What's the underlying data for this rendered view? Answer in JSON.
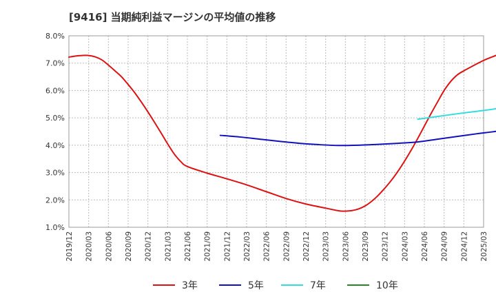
{
  "chart_data": {
    "type": "line",
    "title": "[9416]  当期純利益マージンの平均値の推移",
    "xlabel": "",
    "ylabel": "",
    "ylim": [
      1.0,
      8.0
    ],
    "y_ticks": [
      "1.0%",
      "2.0%",
      "3.0%",
      "4.0%",
      "5.0%",
      "6.0%",
      "7.0%",
      "8.0%"
    ],
    "x_ticks": [
      "2019/12",
      "2020/03",
      "2020/06",
      "2020/09",
      "2020/12",
      "2021/03",
      "2021/06",
      "2021/09",
      "2021/12",
      "2022/03",
      "2022/06",
      "2022/09",
      "2022/12",
      "2023/03",
      "2023/06",
      "2023/09",
      "2023/12",
      "2024/03",
      "2024/06",
      "2024/09",
      "2024/12",
      "2025/03"
    ],
    "grid": true,
    "legend_position": "bottom",
    "series": [
      {
        "name": "3年",
        "color": "#dd1111",
        "points": [
          [
            "2019/12",
            7.22
          ],
          [
            "2020/01",
            7.26
          ],
          [
            "2020/02",
            7.28
          ],
          [
            "2020/03",
            7.28
          ],
          [
            "2020/04",
            7.23
          ],
          [
            "2020/05",
            7.12
          ],
          [
            "2020/06",
            6.93
          ],
          [
            "2020/07",
            6.72
          ],
          [
            "2020/08",
            6.5
          ],
          [
            "2020/09",
            6.22
          ],
          [
            "2020/10",
            5.92
          ],
          [
            "2020/11",
            5.58
          ],
          [
            "2020/12",
            5.22
          ],
          [
            "2021/01",
            4.84
          ],
          [
            "2021/02",
            4.45
          ],
          [
            "2021/03",
            4.05
          ],
          [
            "2021/04",
            3.68
          ],
          [
            "2021/05",
            3.4
          ],
          [
            "2021/06",
            3.22
          ],
          [
            "2021/09",
            2.98
          ],
          [
            "2021/12",
            2.77
          ],
          [
            "2022/03",
            2.55
          ],
          [
            "2022/06",
            2.3
          ],
          [
            "2022/09",
            2.05
          ],
          [
            "2022/12",
            1.85
          ],
          [
            "2023/03",
            1.7
          ],
          [
            "2023/05",
            1.6
          ],
          [
            "2023/06",
            1.59
          ],
          [
            "2023/07",
            1.61
          ],
          [
            "2023/08",
            1.67
          ],
          [
            "2023/09",
            1.78
          ],
          [
            "2023/10",
            1.95
          ],
          [
            "2023/11",
            2.17
          ],
          [
            "2023/12",
            2.43
          ],
          [
            "2024/01",
            2.72
          ],
          [
            "2024/02",
            3.05
          ],
          [
            "2024/03",
            3.42
          ],
          [
            "2024/04",
            3.82
          ],
          [
            "2024/05",
            4.25
          ],
          [
            "2024/06",
            4.7
          ],
          [
            "2024/07",
            5.15
          ],
          [
            "2024/08",
            5.58
          ],
          [
            "2024/09",
            6.0
          ],
          [
            "2024/10",
            6.33
          ],
          [
            "2024/11",
            6.57
          ],
          [
            "2024/12",
            6.72
          ],
          [
            "2025/03",
            7.1
          ],
          [
            "2025/06",
            7.4
          ],
          [
            "2025/07",
            7.65
          ]
        ]
      },
      {
        "name": "5年",
        "color": "#1111bb",
        "points": [
          [
            "2021/11",
            4.36
          ],
          [
            "2022/02",
            4.3
          ],
          [
            "2022/05",
            4.22
          ],
          [
            "2022/08",
            4.14
          ],
          [
            "2022/11",
            4.07
          ],
          [
            "2023/02",
            4.02
          ],
          [
            "2023/05",
            3.99
          ],
          [
            "2023/08",
            4.0
          ],
          [
            "2023/11",
            4.03
          ],
          [
            "2024/02",
            4.07
          ],
          [
            "2024/05",
            4.12
          ],
          [
            "2024/08",
            4.22
          ],
          [
            "2024/11",
            4.32
          ],
          [
            "2025/02",
            4.42
          ],
          [
            "2025/05",
            4.51
          ],
          [
            "2025/07",
            4.6
          ]
        ]
      },
      {
        "name": "7年",
        "color": "#33dddd",
        "points": [
          [
            "2024/05",
            4.95
          ],
          [
            "2024/08",
            5.05
          ],
          [
            "2024/11",
            5.15
          ],
          [
            "2025/02",
            5.24
          ],
          [
            "2025/05",
            5.34
          ],
          [
            "2025/07",
            5.45
          ]
        ]
      },
      {
        "name": "10年",
        "color": "#228822",
        "points": []
      }
    ]
  }
}
